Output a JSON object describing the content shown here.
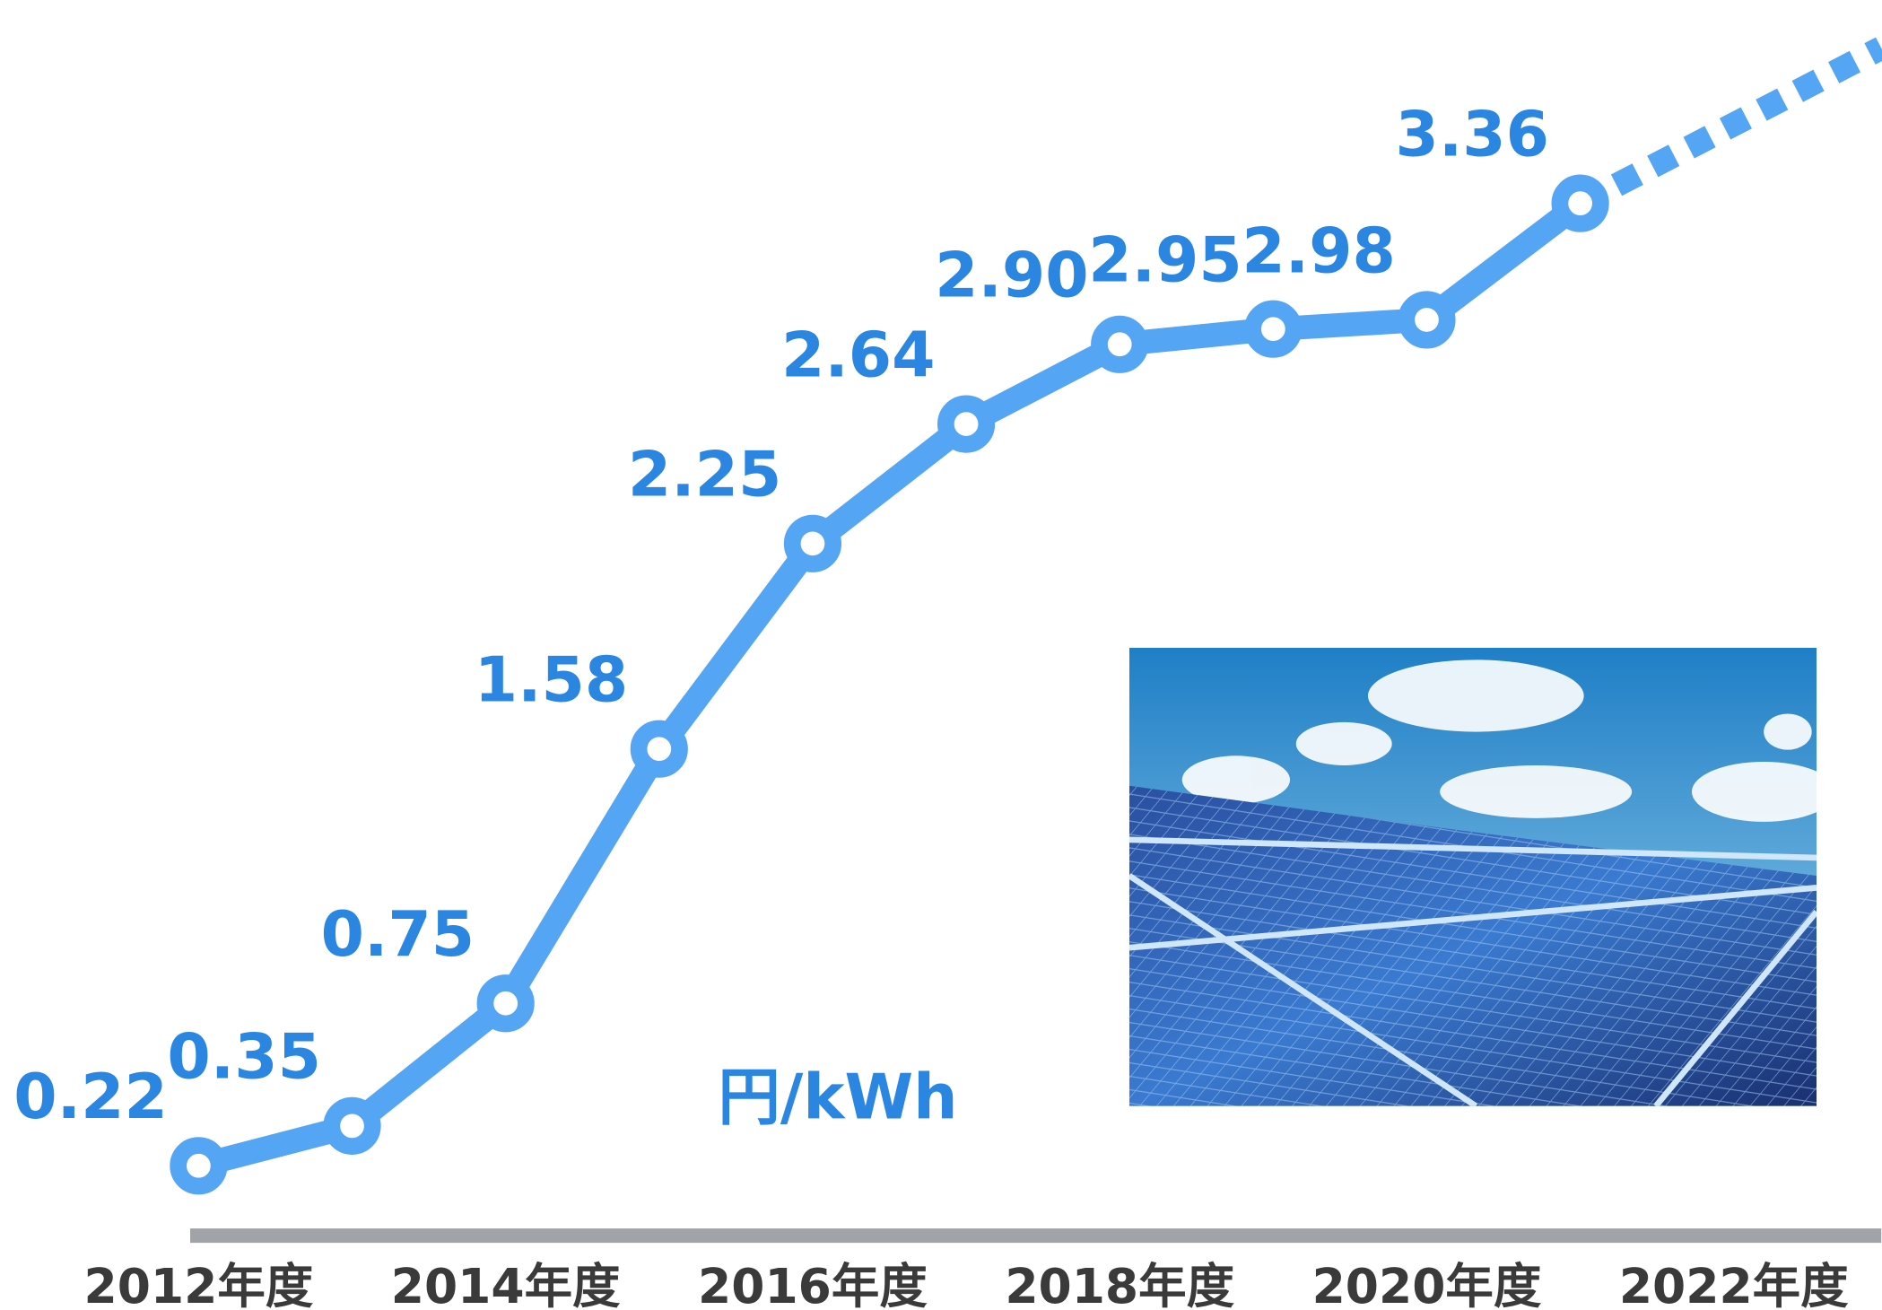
{
  "chart_data": {
    "type": "line",
    "unit_label": "円/kWh",
    "categories": [
      "2012年度",
      null,
      "2014年度",
      null,
      "2016年度",
      null,
      "2018年度",
      null,
      "2020年度",
      null,
      "2022年度"
    ],
    "series": [
      {
        "name": null,
        "color": "#55a5f5",
        "values": [
          0.22,
          0.35,
          0.75,
          1.58,
          2.25,
          2.64,
          2.9,
          2.95,
          2.98,
          3.36,
          null
        ],
        "value_labels": [
          "0.22",
          "0.35",
          "0.75",
          "1.58",
          "2.25",
          "2.64",
          "2.90",
          "2.95",
          "2.98",
          "3.36",
          null
        ]
      }
    ],
    "label_color": "#2a86e0",
    "ylim": [
      0,
      4
    ]
  }
}
